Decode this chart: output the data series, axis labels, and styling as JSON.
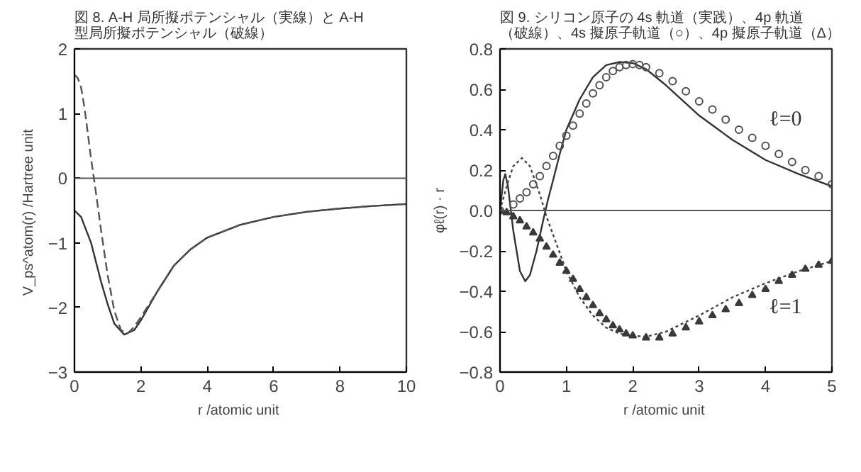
{
  "chart_data": [
    {
      "type": "line",
      "title": "図 8.  A-H 局所擬ポテンシャル（実線）と A-H 型局所擬ポテンシャル（破線）",
      "xlabel": "r  /atomic unit",
      "ylabel": "V_ps^atom(r)  /Hartree unit",
      "xlim": [
        0,
        10
      ],
      "ylim": [
        -3,
        2
      ],
      "xticks": [
        0,
        2,
        4,
        6,
        8,
        10
      ],
      "yticks": [
        {
          "value": -3,
          "label": "−3"
        },
        {
          "value": -2,
          "label": "−2"
        },
        {
          "value": -1,
          "label": "−1"
        },
        0,
        1,
        2
      ],
      "grid": false,
      "ref_lines": [
        {
          "axis": "y",
          "value": 0,
          "color": "#555555"
        }
      ],
      "series": [
        {
          "color": "#333333",
          "line_style": "solid",
          "x": [
            0,
            0.2,
            0.5,
            0.8,
            1.0,
            1.2,
            1.5,
            1.8,
            2.0,
            2.5,
            3,
            3.5,
            4,
            5,
            6,
            7,
            8,
            9,
            10
          ],
          "values": [
            -0.5,
            -0.6,
            -1.0,
            -1.6,
            -1.95,
            -2.25,
            -2.42,
            -2.35,
            -2.2,
            -1.75,
            -1.35,
            -1.1,
            -0.92,
            -0.72,
            -0.6,
            -0.52,
            -0.47,
            -0.43,
            -0.4
          ]
        },
        {
          "color": "#555555",
          "line_style": "dashed",
          "x": [
            0,
            0.1,
            0.2,
            0.3,
            0.4,
            0.5,
            0.6,
            0.8,
            1.0,
            1.2,
            1.4,
            1.6,
            1.8,
            2.0,
            2.5,
            3,
            3.5,
            4,
            5,
            6,
            7,
            8,
            9,
            10
          ],
          "values": [
            1.6,
            1.55,
            1.4,
            1.1,
            0.7,
            0.3,
            -0.05,
            -0.8,
            -1.5,
            -2.05,
            -2.35,
            -2.4,
            -2.3,
            -2.15,
            -1.75,
            -1.35,
            -1.1,
            -0.92,
            -0.72,
            -0.6,
            -0.52,
            -0.47,
            -0.43,
            -0.4
          ]
        }
      ]
    },
    {
      "type": "line",
      "title": "図 9.  シリコン原子の 4s 軌道（実践）、4p 軌道（破線）、4s 擬原子軌道（○）、4p 擬原子軌道（Δ）",
      "xlabel": "r  /atomic unit",
      "ylabel": "φℓ(r) · r",
      "xlim": [
        0,
        5
      ],
      "ylim": [
        -0.8,
        0.8
      ],
      "xticks": [
        0,
        1,
        2,
        3,
        4,
        5
      ],
      "yticks": [
        {
          "value": -0.8,
          "label": "−0.8"
        },
        {
          "value": -0.6,
          "label": "−0.6"
        },
        {
          "value": -0.4,
          "label": "−0.4"
        },
        {
          "value": -0.2,
          "label": "−0.2"
        },
        {
          "value": 0,
          "label": "0.0"
        },
        0.2,
        0.4,
        0.6,
        0.8
      ],
      "grid": false,
      "ref_lines": [
        {
          "axis": "y",
          "value": 0,
          "color": "#555555"
        }
      ],
      "annotations": [
        "ℓ=0",
        "ℓ=1"
      ],
      "series": [
        {
          "color": "#333333",
          "line_style": "solid",
          "x": [
            0,
            0.05,
            0.08,
            0.12,
            0.2,
            0.3,
            0.38,
            0.45,
            0.55,
            0.65,
            0.72,
            0.8,
            0.9,
            1.0,
            1.2,
            1.4,
            1.6,
            1.8,
            2.0,
            2.2,
            2.5,
            3,
            3.5,
            4,
            4.5,
            5
          ],
          "values": [
            0,
            0.15,
            0.18,
            0.12,
            -0.1,
            -0.3,
            -0.35,
            -0.32,
            -0.2,
            -0.05,
            0.05,
            0.15,
            0.28,
            0.4,
            0.55,
            0.66,
            0.72,
            0.735,
            0.73,
            0.7,
            0.62,
            0.47,
            0.35,
            0.25,
            0.18,
            0.12
          ]
        },
        {
          "color": "#444444",
          "line_style": "dotted",
          "x": [
            0,
            0.1,
            0.2,
            0.33,
            0.45,
            0.6,
            0.7,
            0.8,
            1.0,
            1.2,
            1.4,
            1.6,
            1.8,
            2.0,
            2.2,
            2.5,
            3,
            3.5,
            4,
            4.5,
            5
          ],
          "values": [
            0,
            0.12,
            0.22,
            0.26,
            0.22,
            0.08,
            -0.03,
            -0.12,
            -0.3,
            -0.43,
            -0.52,
            -0.58,
            -0.61,
            -0.62,
            -0.625,
            -0.6,
            -0.52,
            -0.43,
            -0.36,
            -0.3,
            -0.25
          ]
        },
        {
          "type": "scatter",
          "marker": "circle",
          "color": "#505050",
          "x": [
            0,
            0.2,
            0.3,
            0.4,
            0.5,
            0.6,
            0.7,
            0.8,
            0.9,
            1.0,
            1.1,
            1.2,
            1.3,
            1.4,
            1.5,
            1.6,
            1.7,
            1.8,
            1.9,
            2.0,
            2.1,
            2.2,
            2.4,
            2.6,
            2.8,
            3.0,
            3.2,
            3.4,
            3.6,
            3.8,
            4.0,
            4.2,
            4.4,
            4.6,
            4.8,
            5
          ],
          "values": [
            0,
            0.03,
            0.06,
            0.09,
            0.13,
            0.17,
            0.22,
            0.27,
            0.32,
            0.37,
            0.42,
            0.48,
            0.53,
            0.58,
            0.62,
            0.66,
            0.69,
            0.71,
            0.72,
            0.725,
            0.72,
            0.71,
            0.68,
            0.64,
            0.59,
            0.54,
            0.5,
            0.45,
            0.4,
            0.36,
            0.32,
            0.28,
            0.24,
            0.2,
            0.17,
            0.13
          ]
        },
        {
          "type": "scatter",
          "marker": "triangle",
          "color": "#3a3a3a",
          "x": [
            0,
            0.1,
            0.2,
            0.3,
            0.4,
            0.5,
            0.6,
            0.7,
            0.8,
            0.9,
            1.0,
            1.1,
            1.2,
            1.3,
            1.4,
            1.5,
            1.6,
            1.7,
            1.8,
            1.9,
            2.0,
            2.2,
            2.4,
            2.6,
            2.8,
            3.0,
            3.2,
            3.4,
            3.6,
            3.8,
            4.0,
            4.2,
            4.4,
            4.6,
            4.8,
            5
          ],
          "values": [
            0,
            -0.01,
            -0.03,
            -0.05,
            -0.08,
            -0.11,
            -0.14,
            -0.18,
            -0.22,
            -0.26,
            -0.3,
            -0.34,
            -0.39,
            -0.43,
            -0.47,
            -0.51,
            -0.54,
            -0.57,
            -0.59,
            -0.61,
            -0.62,
            -0.63,
            -0.63,
            -0.61,
            -0.58,
            -0.55,
            -0.52,
            -0.49,
            -0.46,
            -0.42,
            -0.39,
            -0.35,
            -0.32,
            -0.29,
            -0.27,
            -0.25
          ]
        }
      ]
    }
  ]
}
